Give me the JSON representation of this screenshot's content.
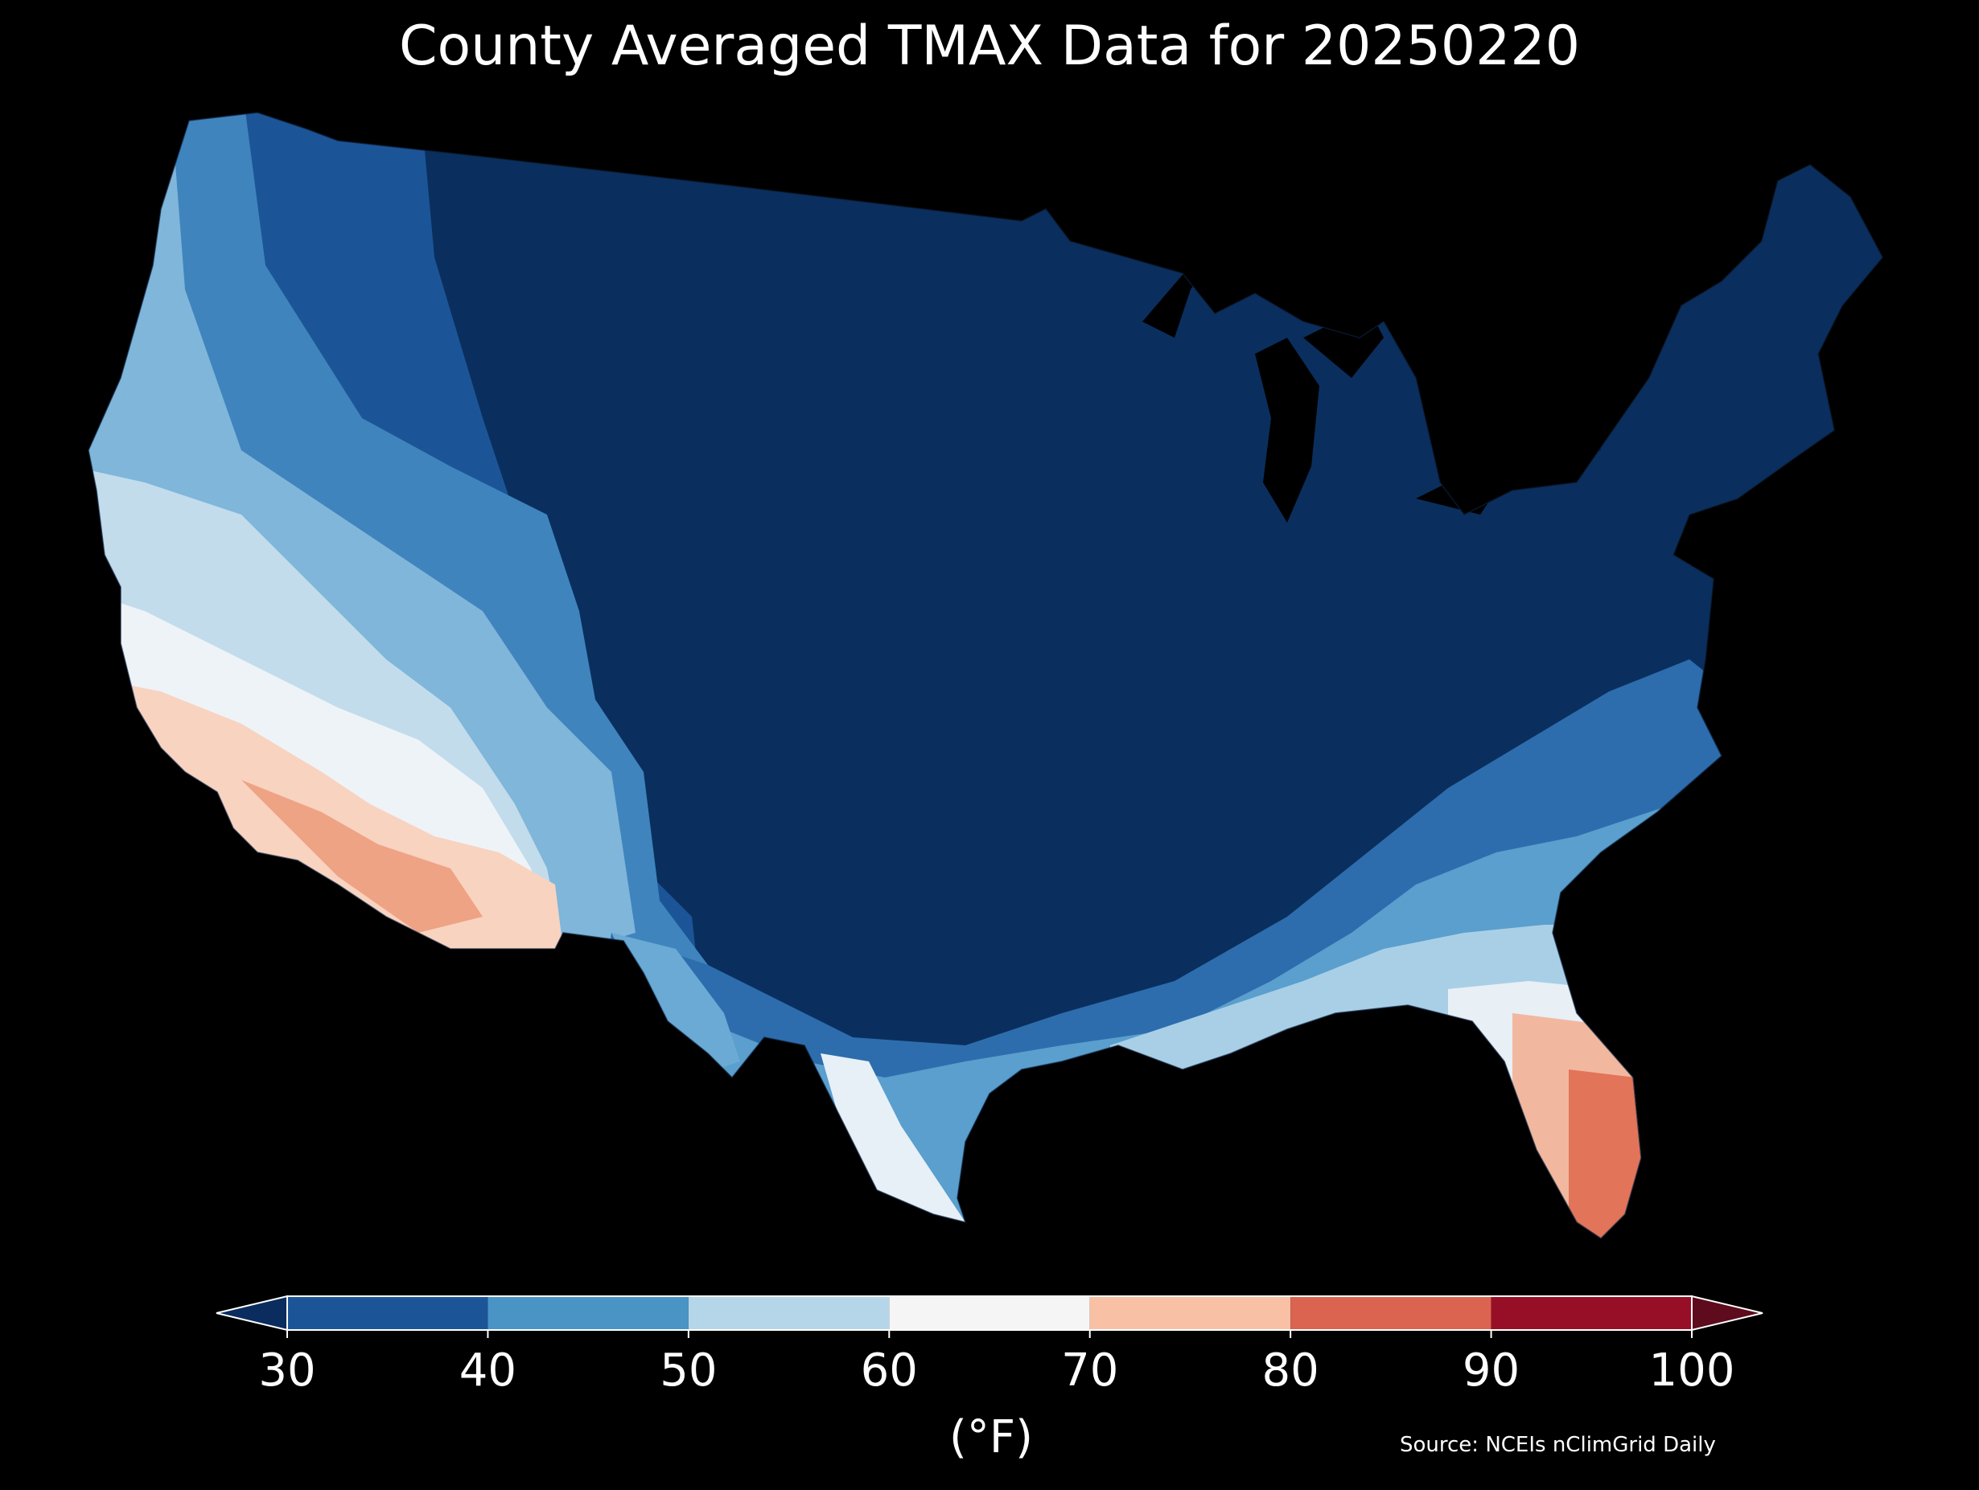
{
  "title": "County Averaged TMAX Data for 20250220",
  "colorbar": {
    "unit": "(°F)",
    "ticks": [
      "30",
      "40",
      "50",
      "60",
      "70",
      "80",
      "90",
      "100"
    ],
    "bins": [
      {
        "range": [
          30,
          40
        ],
        "color": "#1c5597"
      },
      {
        "range": [
          40,
          50
        ],
        "color": "#4994c4"
      },
      {
        "range": [
          50,
          60
        ],
        "color": "#b4d6e8"
      },
      {
        "range": [
          60,
          70
        ],
        "color": "#f5f5f5"
      },
      {
        "range": [
          70,
          80
        ],
        "color": "#f8c0a4"
      },
      {
        "range": [
          80,
          90
        ],
        "color": "#db6451"
      },
      {
        "range": [
          90,
          100
        ],
        "color": "#960f26"
      }
    ],
    "under_color": "#0a2c5e",
    "over_color": "#5d0b1d"
  },
  "source": "Source: NCEIs nClimGrid Daily",
  "map": {
    "region": "Contiguous United States",
    "colors": {
      "coldest": "#0a2f5e",
      "cold": "#1c5597",
      "cool": "#4994c4",
      "mild": "#b4d6e8",
      "neutral": "#f2f2f2",
      "warm": "#f8c9b2",
      "hot": "#e77d61"
    }
  }
}
